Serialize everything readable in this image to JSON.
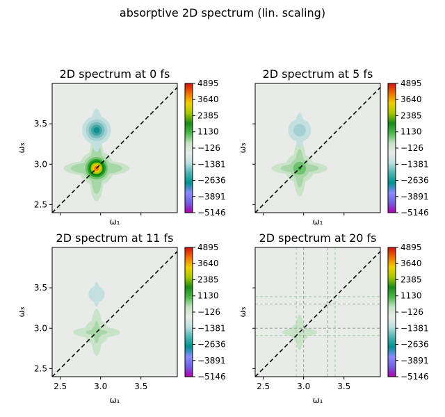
{
  "figure": {
    "title": "absorptive 2D spectrum (lin. scaling)"
  },
  "colors": {
    "background": "#e8ebe8",
    "diagonal": "#000000",
    "green_contour": "#c9e3c9",
    "cyan_contour": "#c4dfe0",
    "colormap": [
      "#b000b0",
      "#7060e0",
      "#8a8aff",
      "#009090",
      "#4fb4b4",
      "#bde0e0",
      "#e8ebe8",
      "#c3e3c3",
      "#4cb84c",
      "#1a8a1a",
      "#a8c800",
      "#f0d000",
      "#f07000",
      "#d01010"
    ]
  },
  "chart_data": [
    {
      "type": "heatmap",
      "title": "2D spectrum at 0 fs",
      "xlabel": "ω₁",
      "ylabel": "ω₃",
      "xlim": [
        2.4,
        3.95
      ],
      "ylim": [
        2.4,
        4.0
      ],
      "xticks": [
        2.5,
        3.0,
        3.5
      ],
      "yticks": [
        2.5,
        3.0,
        3.5
      ],
      "show_xticklabels": false,
      "show_yticklabels": true,
      "peaks": [
        {
          "w1": 2.95,
          "w3": 2.95,
          "amplitude": 4895
        },
        {
          "w1": 2.95,
          "w3": 3.42,
          "amplitude": -1381
        }
      ],
      "colorbar": {
        "ticks": [
          4895,
          3640,
          2385,
          1130,
          -126,
          -1381,
          -2636,
          -3891,
          -5146
        ]
      }
    },
    {
      "type": "heatmap",
      "title": "2D spectrum at 5 fs",
      "xlabel": "ω₁",
      "ylabel": "ω₃",
      "xlim": [
        2.4,
        3.95
      ],
      "ylim": [
        2.4,
        4.0
      ],
      "xticks": [
        2.5,
        3.0,
        3.5
      ],
      "yticks": [
        2.5,
        3.0,
        3.5
      ],
      "show_xticklabels": false,
      "show_yticklabels": false,
      "peaks": [
        {
          "w1": 2.95,
          "w3": 2.95,
          "amplitude": 2000
        },
        {
          "w1": 2.95,
          "w3": 3.42,
          "amplitude": -600
        }
      ],
      "colorbar": {
        "ticks": [
          4895,
          3640,
          2385,
          1130,
          -126,
          -1381,
          -2636,
          -3891,
          -5146
        ]
      }
    },
    {
      "type": "heatmap",
      "title": "2D spectrum at 11 fs",
      "xlabel": "ω₁",
      "ylabel": "ω₃",
      "xlim": [
        2.4,
        3.95
      ],
      "ylim": [
        2.4,
        4.0
      ],
      "xticks": [
        2.5,
        3.0,
        3.5
      ],
      "yticks": [
        2.5,
        3.0,
        3.5
      ],
      "show_xticklabels": true,
      "show_yticklabels": true,
      "peaks": [
        {
          "w1": 2.95,
          "w3": 2.95,
          "amplitude": 1000
        },
        {
          "w1": 2.95,
          "w3": 3.42,
          "amplitude": -300
        }
      ],
      "colorbar": {
        "ticks": [
          4895,
          3640,
          2385,
          1130,
          -126,
          -1381,
          -2636,
          -3891,
          -5146
        ]
      }
    },
    {
      "type": "heatmap",
      "title": "2D spectrum at 20 fs",
      "xlabel": "ω₁",
      "ylabel": "ω₃",
      "xlim": [
        2.4,
        3.95
      ],
      "ylim": [
        2.4,
        4.0
      ],
      "xticks": [
        2.5,
        3.0,
        3.5
      ],
      "yticks": [
        2.5,
        3.0,
        3.5
      ],
      "show_xticklabels": true,
      "show_yticklabels": false,
      "peaks": [
        {
          "w1": 2.95,
          "w3": 2.95,
          "amplitude": 500
        }
      ],
      "reference_lines": {
        "gray": {
          "w1": [
            3.0,
            3.3
          ],
          "w3": [
            3.0,
            3.3
          ]
        },
        "green": {
          "w1": [
            2.91,
            3.39
          ],
          "w3": [
            2.91,
            3.39
          ]
        }
      },
      "colorbar": {
        "ticks": [
          4895,
          3640,
          2385,
          1130,
          -126,
          -1381,
          -2636,
          -3891,
          -5146
        ]
      }
    }
  ]
}
